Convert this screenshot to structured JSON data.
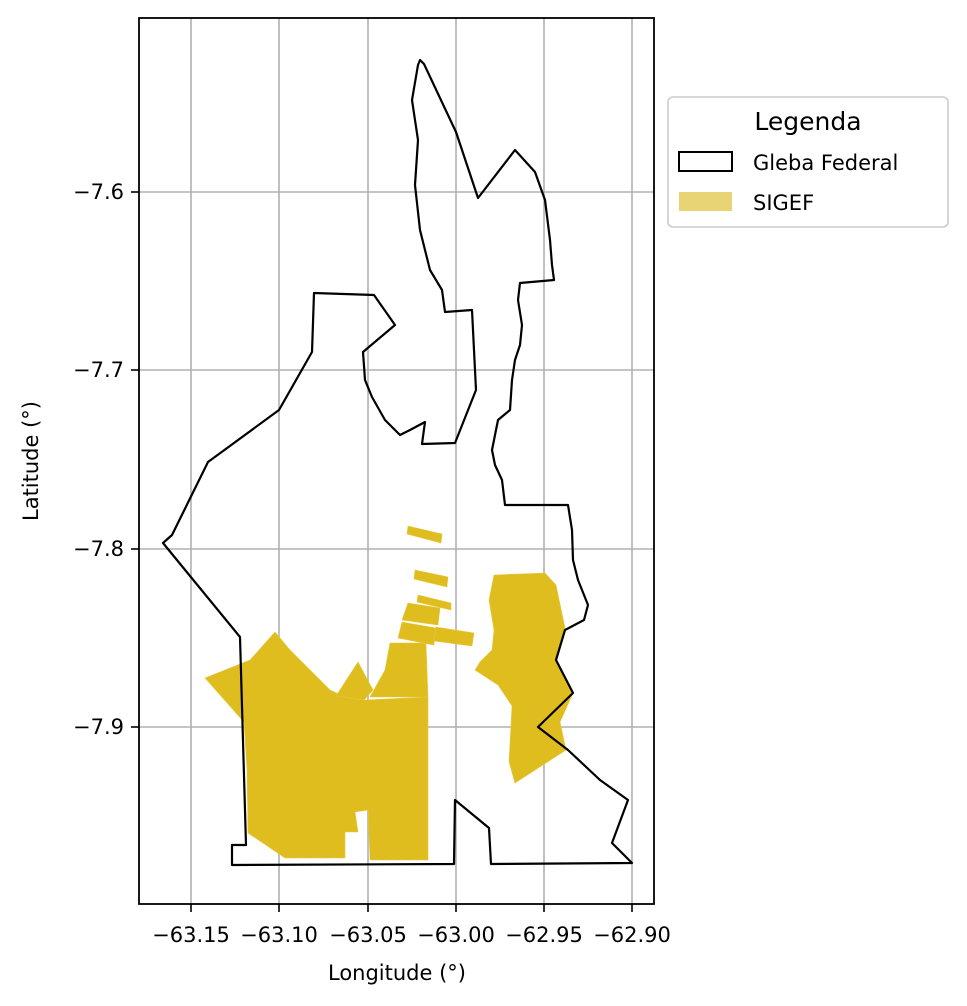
{
  "map": {
    "x_axis": {
      "label": "Longitude (°)",
      "ticks": [
        "−63.15",
        "−63.10",
        "−63.05",
        "−63.00",
        "−62.95",
        "−62.90"
      ],
      "range": [
        -63.18,
        -62.89
      ]
    },
    "y_axis": {
      "label": "Latitude (°)",
      "ticks": [
        "−7.6",
        "−7.7",
        "−7.8",
        "−7.9"
      ],
      "range": [
        -7.998,
        -7.502
      ]
    },
    "grid": true,
    "legend": {
      "title": "Legenda",
      "placement": "outside-right-top",
      "items": [
        {
          "label": "Gleba Federal",
          "style": "outline",
          "color": "#000000"
        },
        {
          "label": "SIGEF",
          "style": "fill",
          "color": "#e8d475"
        }
      ]
    },
    "layers": {
      "gleba_federal": {
        "stroke": "#000000",
        "fill": "none"
      },
      "sigef": {
        "fill": "#dfbd1f"
      }
    }
  }
}
